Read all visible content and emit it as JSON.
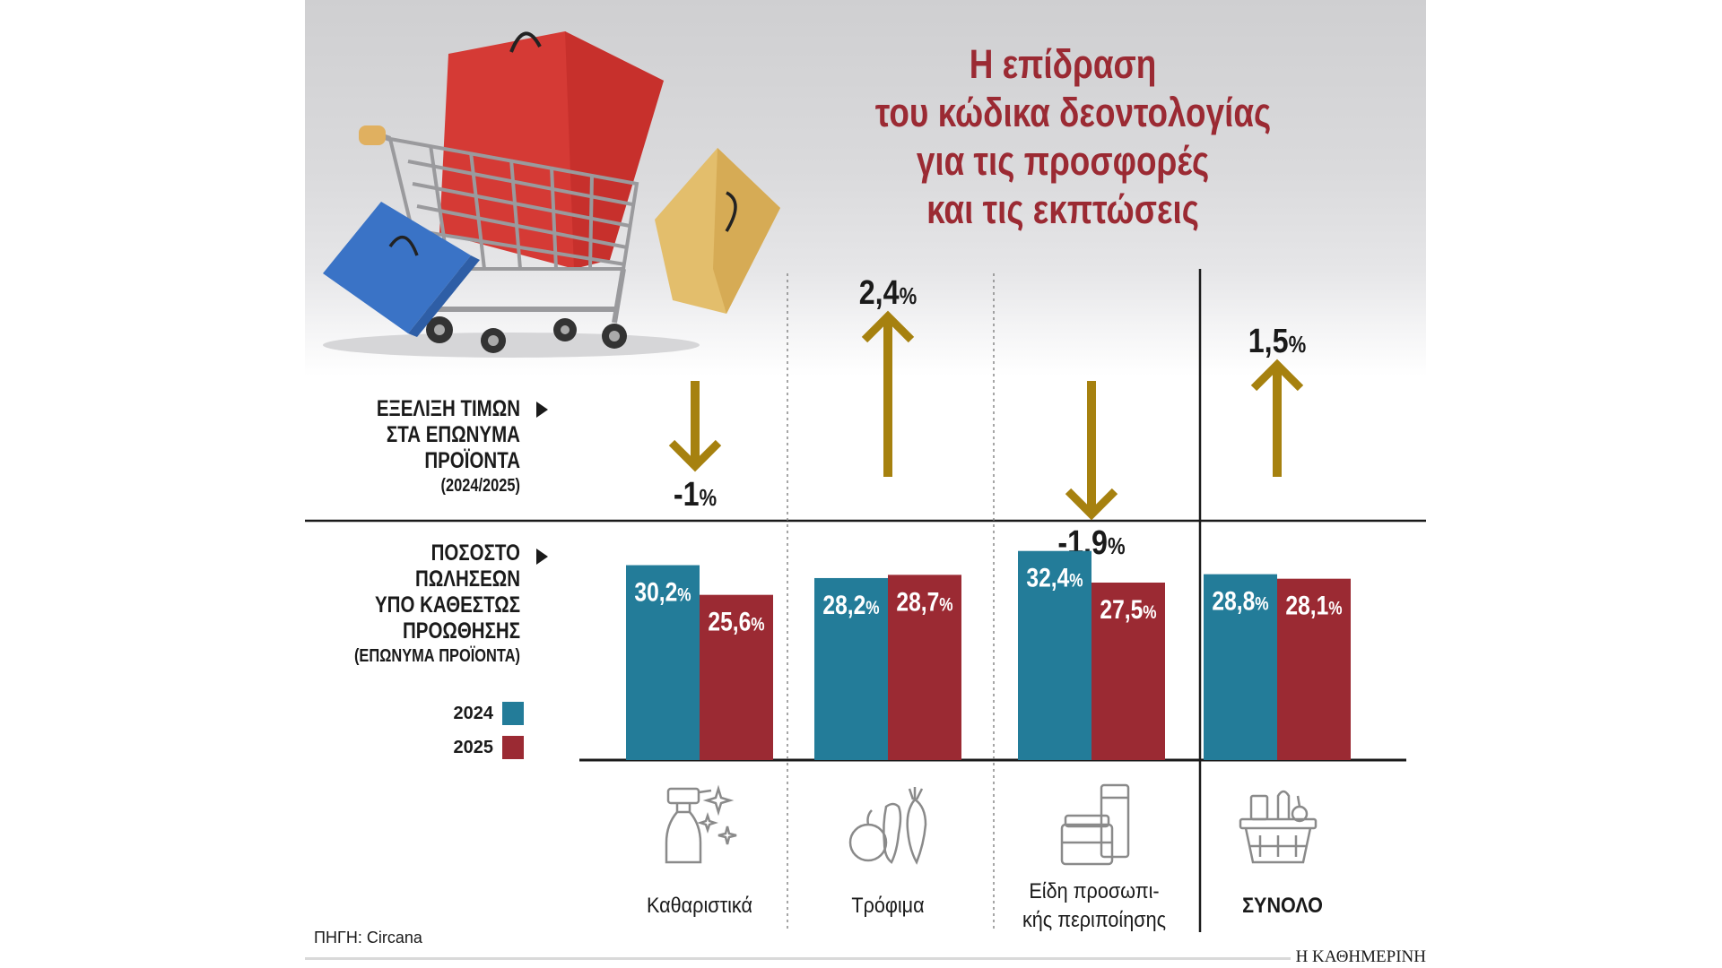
{
  "title": {
    "lines": [
      "Η επίδραση",
      "του κώδικα δεοντολογίας",
      "για τις προσφορές",
      "και τις εκπτώσεις"
    ]
  },
  "row_labels": {
    "price": {
      "lines": [
        "ΕΞΕΛΙΞΗ ΤΙΜΩΝ",
        "ΣΤΑ ΕΠΩΝΥΜΑ",
        "ΠΡΟΪΟΝΤΑ"
      ],
      "sub": "(2024/2025)"
    },
    "promo": {
      "lines": [
        "ΠΟΣΟΣΤΟ",
        "ΠΩΛΗΣΕΩΝ",
        "ΥΠΟ ΚΑΘΕΣΤΩΣ",
        "ΠΡΟΩΘΗΣΗΣ"
      ],
      "sub": "(ΕΠΩΝΥΜΑ ΠΡΟΪΟΝΤΑ)"
    }
  },
  "legend": [
    {
      "label": "2024",
      "color": "#237c99"
    },
    {
      "label": "2025",
      "color": "#9b2a33"
    }
  ],
  "colors": {
    "arrow": "#a6810f",
    "title": "#9b2a33",
    "bar2024": "#237c99",
    "bar2025": "#9b2a33"
  },
  "icons": [
    "spray-bottle-icon",
    "vegetables-icon",
    "cosmetics-icon",
    "basket-icon"
  ],
  "photo": "shopping-cart-with-bags-image",
  "source": "ΠΗΓΗ: Circana",
  "brand": "Η ΚΑΘΗΜΕΡΙΝΗ",
  "chart_data": {
    "type": "bar",
    "title": "Η επίδραση του κώδικα δεοντολογίας για τις προσφορές και τις εκπτώσεις",
    "categories": [
      "Καθαριστικά",
      "Τρόφιμα",
      "Είδη προσωπικής περιποίησης",
      "ΣΥΝΟΛΟ"
    ],
    "category_display": [
      "Καθαριστικά",
      "Τρόφιμα",
      [
        "Είδη προσωπι-",
        "κής περιποίησης"
      ],
      "ΣΥΝΟΛΟ"
    ],
    "unit": "%",
    "price_change": {
      "label": "ΕΞΕΛΙΞΗ ΤΙΜΩΝ ΣΤΑ ΕΠΩΝΥΜΑ ΠΡΟΪΟΝΤΑ (2024/2025)",
      "values": [
        -1,
        2.4,
        -1.9,
        1.5
      ],
      "labels": [
        "-1",
        "2,4",
        "-1,9",
        "1,5"
      ]
    },
    "series": [
      {
        "name": "2024",
        "values": [
          30.2,
          28.2,
          32.4,
          28.8
        ],
        "labels": [
          "30,2",
          "28,2",
          "32,4",
          "28,8"
        ]
      },
      {
        "name": "2025",
        "values": [
          25.6,
          28.7,
          27.5,
          28.1
        ],
        "labels": [
          "25,6",
          "28,7",
          "27,5",
          "28,1"
        ]
      }
    ],
    "ylabel": "ΠΟΣΟΣΤΟ ΠΩΛΗΣΕΩΝ ΥΠΟ ΚΑΘΕΣΤΩΣ ΠΡΟΩΘΗΣΗΣ (ΕΠΩΝΥΜΑ ΠΡΟΪΟΝΤΑ)",
    "ylim": [
      0,
      34
    ]
  }
}
